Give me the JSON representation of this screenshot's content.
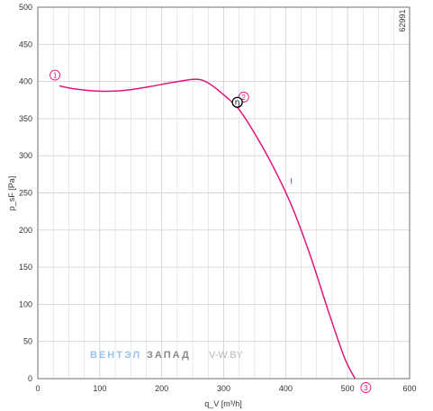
{
  "chart_data": {
    "type": "line",
    "xlabel": "q_V [m³/h]",
    "ylabel": "p_sF [Pa]",
    "xlim": [
      0,
      600
    ],
    "ylim": [
      0,
      500
    ],
    "x_ticks": [
      "0",
      "100",
      "200",
      "300",
      "400",
      "500",
      "600"
    ],
    "y_ticks": [
      "0",
      "50",
      "100",
      "150",
      "200",
      "250",
      "300",
      "350",
      "400",
      "450",
      "500"
    ],
    "grid": true,
    "chart_id": "62991",
    "curve_label": "I",
    "series": [
      {
        "x": [
          35,
          60,
          100,
          140,
          180,
          220,
          255,
          275,
          300,
          325,
          350,
          380,
          410,
          440,
          470,
          495,
          512
        ],
        "values": [
          394,
          390,
          387,
          388,
          393,
          399,
          403,
          398,
          382,
          362,
          330,
          285,
          232,
          165,
          88,
          28,
          0
        ]
      }
    ],
    "operating_points": [
      {
        "label": "1",
        "x": 35,
        "y": 394
      },
      {
        "label": "2",
        "x": 325,
        "y": 362
      },
      {
        "label": "3",
        "x": 512,
        "y": 0
      }
    ],
    "efficiency_marker": {
      "symbol": "η",
      "x": 322,
      "y": 372
    },
    "colors": {
      "curve": "#e0157a",
      "grid": "#d4d4d4",
      "axis": "#333333"
    }
  },
  "watermark": {
    "part1": "ВЕНТЭЛ",
    "part2": "ЗАПАД",
    "part3": "V-W.BY",
    "colors": {
      "part1": "#9cc3e6",
      "part2": "#8a8a8a",
      "part3": "#b8b8b8"
    }
  }
}
